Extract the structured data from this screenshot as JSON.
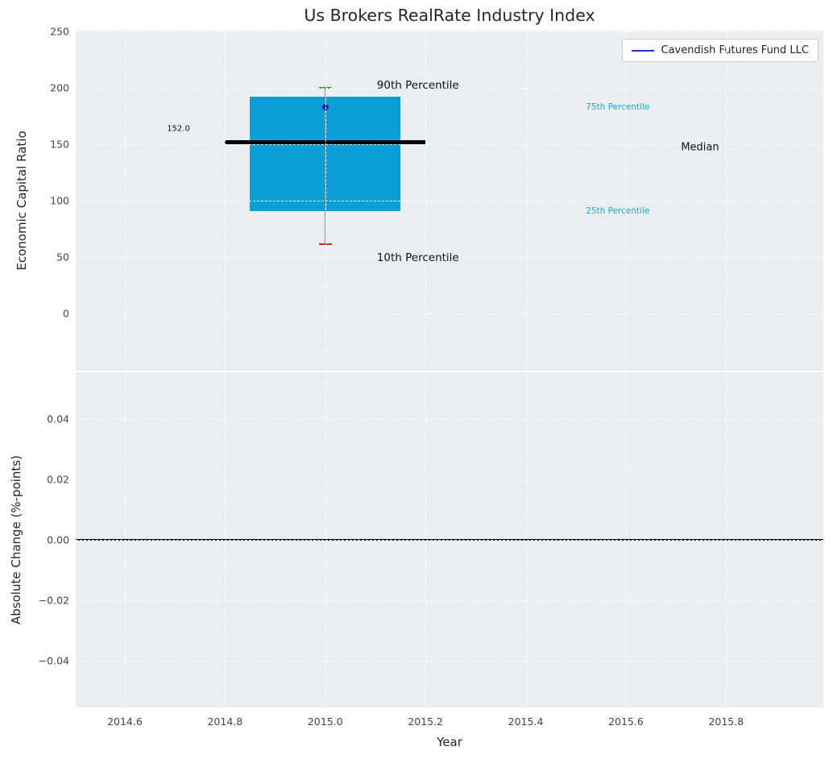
{
  "title": "Us Brokers RealRate Industry Index",
  "legend": {
    "label": "Cavendish Futures Fund LLC",
    "line_color": "#2a2ad4"
  },
  "colors": {
    "axes_bg": "#e9eef1",
    "grid": "#ffffff",
    "box_fill": "#0c9ed9",
    "median_line": "#000000",
    "whisker": "#8d8d8d",
    "cap_top": "#18a018",
    "cap_bottom": "#d62728",
    "fund_dot": "#2424cc",
    "percentile_text": "#1fa4d6",
    "tick_text": "#444444"
  },
  "top_plot": {
    "ylabel": "Economic Capital Ratio",
    "ylim": [
      -51,
      251
    ],
    "yticks": [
      250,
      200,
      150,
      100,
      50,
      0
    ],
    "ytick_labels": [
      "250",
      "200",
      "150",
      "100",
      "50",
      "0"
    ]
  },
  "bottom_plot": {
    "ylabel": "Absolute Change (%-points)",
    "ylim": [
      -0.0555,
      0.0555
    ],
    "yticks": [
      0.04,
      0.02,
      0.0,
      -0.02,
      -0.04
    ],
    "ytick_labels": [
      "0.04",
      "0.02",
      "0.00",
      "−0.02",
      "−0.04"
    ],
    "zero_line": 0
  },
  "x_axis": {
    "label": "Year",
    "xlim": [
      2014.502,
      2015.994
    ],
    "xticks": [
      2014.6,
      2014.8,
      2015.0,
      2015.2,
      2015.4,
      2015.6,
      2015.8
    ],
    "xtick_labels": [
      "2014.6",
      "2014.8",
      "2015.0",
      "2015.2",
      "2015.4",
      "2015.6",
      "2015.8"
    ]
  },
  "chart_data": {
    "type": "box",
    "title": "Us Brokers RealRate Industry Index",
    "xlabel": "Year",
    "ylabel": "Economic Capital Ratio",
    "x": 2015.0,
    "box": {
      "p10": 61,
      "p25": 90.5,
      "median": 152,
      "p75": 192,
      "p90": 200.5
    },
    "box_half_width": 0.15,
    "median_half_width": 0.2,
    "median_value_label": "152.0",
    "fund_point": {
      "name": "Cavendish Futures Fund LLC",
      "x": 2015.0,
      "y": 183
    },
    "annotations": [
      {
        "id": "median-value",
        "text": "152.0",
        "x": 2014.684,
        "y": 164,
        "style": "tiny"
      },
      {
        "id": "p90",
        "text": "90th Percentile",
        "x": 2015.103,
        "y": 202,
        "style": "large"
      },
      {
        "id": "p10",
        "text": "10th Percentile",
        "x": 2015.103,
        "y": 49,
        "style": "large"
      },
      {
        "id": "p75",
        "text": "75th Percentile",
        "x": 2015.52,
        "y": 183,
        "style": "cyan"
      },
      {
        "id": "p25",
        "text": "25th Percentile",
        "x": 2015.52,
        "y": 91,
        "style": "cyan"
      },
      {
        "id": "median",
        "text": "Median",
        "x": 2015.71,
        "y": 147,
        "style": "medium"
      }
    ],
    "bottom_series": {
      "name": "Absolute Change (%-points)",
      "values": []
    }
  }
}
